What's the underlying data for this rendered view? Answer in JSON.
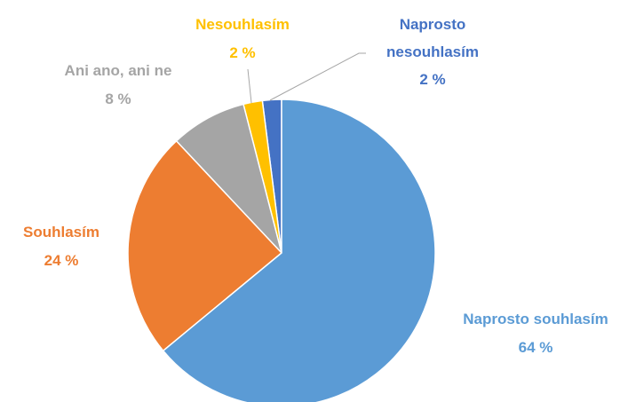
{
  "chart_data": {
    "type": "pie",
    "categories": [
      "Naprosto souhlasím",
      "Souhlasím",
      "Ani ano, ani ne",
      "Nesouhlasím",
      "Naprosto nesouhlasím"
    ],
    "values": [
      64,
      24,
      8,
      2,
      2
    ],
    "value_labels": [
      "64 %",
      "24 %",
      "8 %",
      "2 %",
      "2 %"
    ],
    "colors": [
      "#5B9BD5",
      "#ED7D31",
      "#A5A5A5",
      "#FFC000",
      "#4472C4"
    ]
  }
}
